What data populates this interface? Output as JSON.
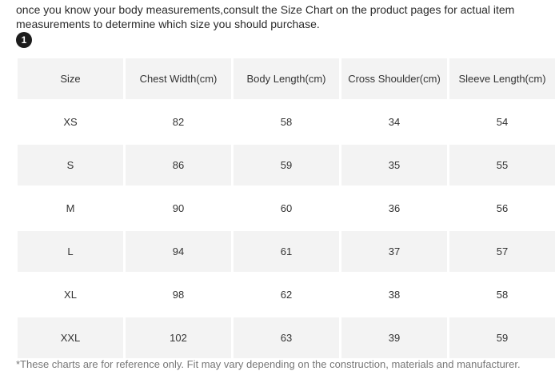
{
  "intro_text": "once you know your body measurements,consult the Size Chart on the product pages for actual item measurements to determine which size you should purchase.",
  "badge_number": "1",
  "table": {
    "headers": [
      "Size",
      "Chest Width(cm)",
      "Body Length(cm)",
      "Cross Shoulder(cm)",
      "Sleeve Length(cm)"
    ],
    "rows": [
      [
        "XS",
        "82",
        "58",
        "34",
        "54"
      ],
      [
        "S",
        "86",
        "59",
        "35",
        "55"
      ],
      [
        "M",
        "90",
        "60",
        "36",
        "56"
      ],
      [
        "L",
        "94",
        "61",
        "37",
        "57"
      ],
      [
        "XL",
        "98",
        "62",
        "38",
        "58"
      ],
      [
        "XXL",
        "102",
        "63",
        "39",
        "59"
      ]
    ]
  },
  "footnote": "*These charts are for reference only. Fit may vary depending on the construction, materials and manufacturer."
}
